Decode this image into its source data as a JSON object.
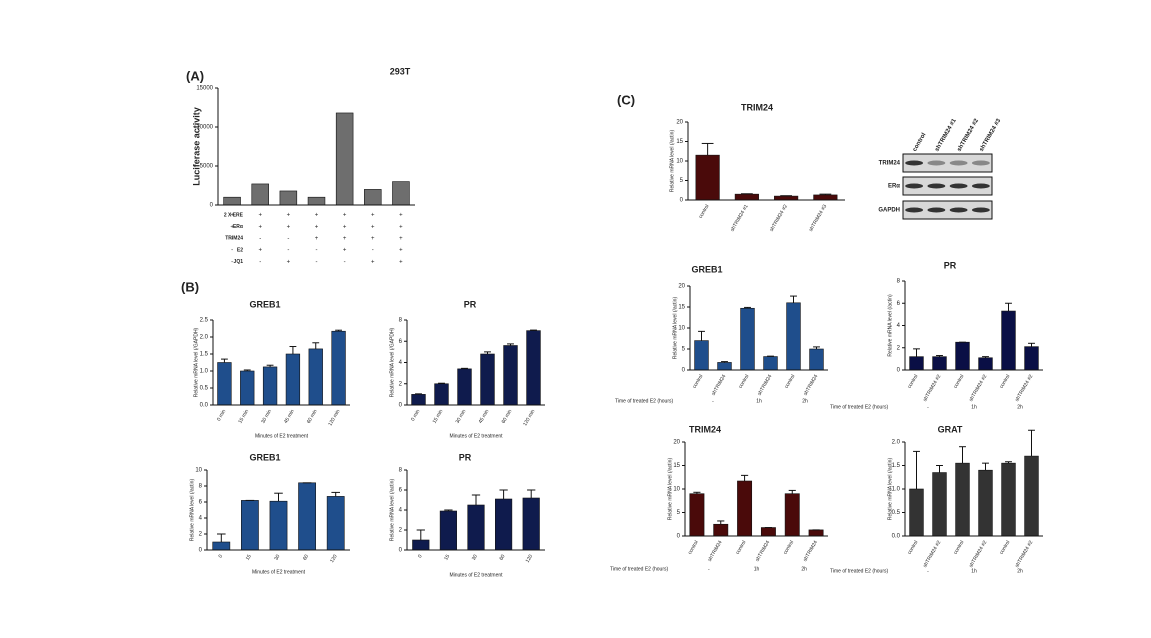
{
  "panel_labels": [
    "(A)",
    "(B)",
    "(C)"
  ],
  "western_blot": {
    "columns": [
      "control",
      "shTRIM24 #1",
      "shTRIM24 #2",
      "shTRIM24 #3"
    ],
    "rows": [
      "TRIM24",
      "ERα",
      "GAPDH"
    ]
  },
  "chart_data": [
    {
      "type": "bar",
      "title": "293T",
      "ylabel": "Luciferase activity",
      "values": [
        1000,
        2700,
        1800,
        1000,
        11800,
        2000,
        3000
      ],
      "color": "#6e6e6e",
      "ylim": [
        0,
        15000
      ],
      "yticks": [
        0,
        5000,
        10000,
        15000
      ],
      "conditions": [
        {
          "name": "2 X ERE",
          "values": [
            "+",
            "+",
            "+",
            "+",
            "+",
            "+",
            "+"
          ]
        },
        {
          "name": "ERα",
          "values": [
            "+",
            "+",
            "+",
            "+",
            "+",
            "+",
            "+"
          ]
        },
        {
          "name": "TRIM24",
          "values": [
            "-",
            "-",
            "-",
            "+",
            "+",
            "+",
            "+"
          ]
        },
        {
          "name": "E2",
          "values": [
            "-",
            "+",
            "-",
            "-",
            "+",
            "-",
            "+"
          ]
        },
        {
          "name": "JQ1",
          "values": [
            "-",
            "-",
            "+",
            "-",
            "-",
            "+",
            "+"
          ]
        }
      ]
    },
    {
      "type": "bar",
      "title": "GREB1",
      "ylabel": "Relative mRNA level (/GAPDH)",
      "xlabel": "Minutes of E2 treatment",
      "categories": [
        "0 min",
        "15 min",
        "30 min",
        "45 min",
        "60 min",
        "120 min"
      ],
      "values": [
        1.25,
        1.0,
        1.12,
        1.5,
        1.65,
        2.17
      ],
      "errors": [
        0.1,
        0.03,
        0.05,
        0.22,
        0.18,
        0.03
      ],
      "color": "#1f4e8c",
      "ylim": [
        0,
        2.5
      ],
      "yticks": [
        {
          "value": 0,
          "label": "0.0"
        },
        0.5,
        {
          "value": 1,
          "label": "1.0"
        },
        1.5,
        {
          "value": 2,
          "label": "2.0"
        },
        2.5
      ]
    },
    {
      "type": "bar",
      "title": "PR",
      "ylabel": "Relative mRNA level (/GAPDH)",
      "xlabel": "Minutes of E2 treatment",
      "categories": [
        "0 min",
        "15 min",
        "30 min",
        "45 min",
        "60 min",
        "120 min"
      ],
      "values": [
        1.0,
        2.0,
        3.4,
        4.8,
        5.6,
        7.0
      ],
      "errors": [
        0.05,
        0.05,
        0.05,
        0.2,
        0.15,
        0.05
      ],
      "color": "#0f1b4d",
      "ylim": [
        0,
        8
      ],
      "yticks": [
        0,
        2,
        4,
        6,
        8
      ]
    },
    {
      "type": "bar",
      "title": "GREB1",
      "ylabel": "Relative mRNA level (/actin)",
      "xlabel": "Minutes of E2 treatment",
      "categories": [
        "0",
        "15",
        "30",
        "60",
        "120"
      ],
      "values": [
        1.0,
        6.2,
        6.1,
        8.4,
        6.7
      ],
      "errors": [
        1.0,
        0,
        1.0,
        0,
        0.5
      ],
      "color": "#1f4e8c",
      "ylim": [
        0,
        10
      ],
      "yticks": [
        0,
        2,
        4,
        6,
        8,
        10
      ]
    },
    {
      "type": "bar",
      "title": "PR",
      "ylabel": "Relative mRNA level (/actin)",
      "xlabel": "Minutes of E2 treatment",
      "categories": [
        "0",
        "15",
        "30",
        "60",
        "120"
      ],
      "values": [
        1.0,
        3.9,
        4.5,
        5.1,
        5.2
      ],
      "errors": [
        1.0,
        0.1,
        1.0,
        0.9,
        0.8
      ],
      "color": "#0f1b4d",
      "ylim": [
        0,
        8
      ],
      "yticks": [
        0,
        2,
        4,
        6,
        8
      ]
    },
    {
      "type": "bar",
      "title": "TRIM24",
      "ylabel": "Relative mRNA level (/actin)",
      "categories": [
        "control",
        "shTRIM24 #1",
        "shTRIM24 #2",
        "shTRIM24 #3"
      ],
      "values": [
        11.5,
        1.5,
        1.0,
        1.3
      ],
      "errors": [
        3.0,
        0.1,
        0.1,
        0.2
      ],
      "color": "#4a0a0a",
      "ylim": [
        0,
        20
      ],
      "yticks": [
        0,
        5,
        10,
        15,
        20
      ]
    },
    {
      "type": "bar",
      "title": "GREB1",
      "ylabel": "Relative mRNA level (/actin)",
      "categories": [
        "control",
        "shTRIM24",
        "control",
        "shTRIM24",
        "control",
        "shTRIM24"
      ],
      "values": [
        7.0,
        1.8,
        14.7,
        3.2,
        16.0,
        5.0
      ],
      "errors": [
        2.2,
        0.2,
        0.2,
        0.1,
        1.6,
        0.5
      ],
      "color": "#1f4e8c",
      "ylim": [
        0,
        20
      ],
      "yticks": [
        0,
        5,
        10,
        15,
        20
      ],
      "time_label": "Time of treated E2 (hours)",
      "time_groups": [
        "-",
        "1h",
        "2h"
      ]
    },
    {
      "type": "bar",
      "title": "PR",
      "ylabel": "Relative mRNA level (/actin)",
      "categories": [
        "control",
        "shTRIM24 #2",
        "control",
        "shTRIM24 #2",
        "control",
        "shTRIM24 #2"
      ],
      "values": [
        1.2,
        1.2,
        2.5,
        1.1,
        5.3,
        2.1
      ],
      "errors": [
        0.7,
        0.1,
        0,
        0.1,
        0.7,
        0.3
      ],
      "color": "#0a0f45",
      "ylim": [
        0,
        8
      ],
      "yticks": [
        0,
        2,
        4,
        6,
        8
      ],
      "time_label": "Time of treated E2 (hours)",
      "time_groups": [
        "-",
        "1h",
        "2h"
      ]
    },
    {
      "type": "bar",
      "title": "TRIM24",
      "ylabel": "Relative mRNA level (/actin)",
      "categories": [
        "control",
        "shTRIM24",
        "control",
        "shTRIM24",
        "control",
        "shTRIM24"
      ],
      "values": [
        9.0,
        2.5,
        11.7,
        1.8,
        9.0,
        1.3
      ],
      "errors": [
        0.3,
        0.7,
        1.2,
        0,
        0.7,
        0
      ],
      "color": "#4a0a0a",
      "ylim": [
        0,
        20
      ],
      "yticks": [
        0,
        5,
        10,
        15,
        20
      ],
      "time_label": "Time of treated E2 (hours)",
      "time_groups": [
        "-",
        "1h",
        "2h"
      ]
    },
    {
      "type": "bar",
      "title": "GRAT",
      "ylabel": "Relative mRNA level (/actin)",
      "categories": [
        "control",
        "shTRIM24 #2",
        "control",
        "shTRIM24 #2",
        "control",
        "shTRIM24 #2"
      ],
      "values": [
        1.0,
        1.35,
        1.55,
        1.4,
        1.55,
        1.7
      ],
      "errors": [
        0.8,
        0.15,
        0.35,
        0.15,
        0.03,
        0.55
      ],
      "color": "#333333",
      "ylim": [
        0,
        2
      ],
      "yticks": [
        {
          "value": 0,
          "label": "0.0"
        },
        0.5,
        {
          "value": 1,
          "label": "1.0"
        },
        1.5,
        {
          "value": 2,
          "label": "2.0"
        }
      ],
      "time_label": "Time of treated E2 (hours)",
      "time_groups": [
        "-",
        "1h",
        "2h"
      ]
    }
  ]
}
